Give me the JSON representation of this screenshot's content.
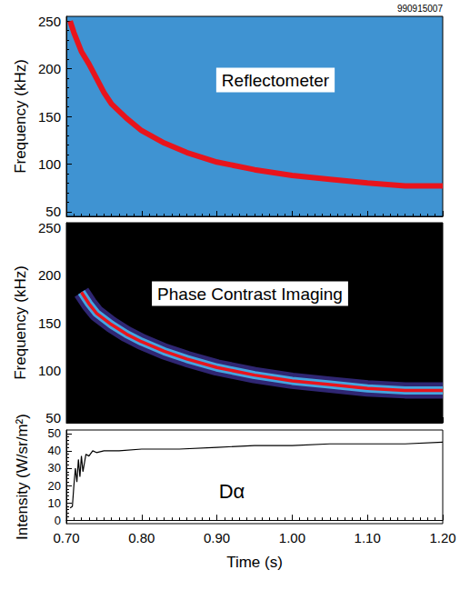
{
  "chart_data": [
    {
      "type": "line",
      "subtitle": "990915007",
      "annotation": "Reflectometer",
      "y_label": "Frequency (kHz)",
      "color": "#e8141c",
      "tick_labels": "y",
      "x": [
        0.705,
        0.71,
        0.72,
        0.73,
        0.74,
        0.75,
        0.76,
        0.78,
        0.8,
        0.83,
        0.86,
        0.9,
        0.95,
        1.0,
        1.05,
        1.1,
        1.15,
        1.2
      ],
      "values": [
        250,
        238,
        218,
        205,
        190,
        175,
        163,
        148,
        135,
        122,
        112,
        102,
        94,
        88,
        84,
        80,
        77,
        77
      ],
      "xlim": [
        0.7,
        1.2
      ],
      "xticks": [
        {
          "value": 0.7,
          "label": "0.70"
        },
        {
          "value": 0.8,
          "label": "0.80"
        },
        {
          "value": 0.9,
          "label": "0.90"
        },
        {
          "value": 1.0,
          "label": "1.00"
        },
        {
          "value": 1.1,
          "label": "1.10"
        },
        {
          "value": 1.2,
          "label": "1.20"
        }
      ],
      "ylim": [
        45,
        255
      ],
      "yticks": [
        50,
        100,
        150,
        200,
        250
      ]
    },
    {
      "type": "line",
      "annotation": "Phase Contrast Imaging",
      "y_label": "Frequency (kHz)",
      "color": "#e8141c",
      "tick_labels": "y",
      "x": [
        0.72,
        0.73,
        0.74,
        0.76,
        0.78,
        0.8,
        0.83,
        0.86,
        0.9,
        0.95,
        1.0,
        1.05,
        1.1,
        1.15,
        1.2
      ],
      "values": [
        182,
        170,
        160,
        148,
        138,
        130,
        120,
        112,
        103,
        95,
        89,
        85,
        81,
        79,
        79
      ],
      "xlim": [
        0.7,
        1.2
      ],
      "xticks": [
        {
          "value": 0.7,
          "label": "0.70"
        },
        {
          "value": 0.8,
          "label": "0.80"
        },
        {
          "value": 0.9,
          "label": "0.90"
        },
        {
          "value": 1.0,
          "label": "1.00"
        },
        {
          "value": 1.1,
          "label": "1.10"
        },
        {
          "value": 1.2,
          "label": "1.20"
        }
      ],
      "ylim": [
        45,
        255
      ],
      "yticks": [
        50,
        100,
        150,
        200,
        250
      ]
    },
    {
      "type": "line",
      "annotation": "Dα",
      "x_label": "Time (s)",
      "y_label": "Intensity (W/sr/m²)",
      "color": "#000000",
      "x": [
        0.705,
        0.708,
        0.71,
        0.712,
        0.714,
        0.716,
        0.718,
        0.72,
        0.722,
        0.724,
        0.726,
        0.73,
        0.735,
        0.74,
        0.75,
        0.77,
        0.8,
        0.85,
        0.9,
        0.95,
        1.0,
        1.05,
        1.1,
        1.15,
        1.2
      ],
      "values": [
        7,
        8,
        20,
        30,
        22,
        35,
        25,
        37,
        28,
        33,
        38,
        37,
        40,
        39,
        40,
        40,
        41,
        41,
        42,
        43,
        43,
        44,
        44,
        44,
        45
      ],
      "xlim": [
        0.7,
        1.2
      ],
      "xticks": [
        {
          "value": 0.7,
          "label": "0.70"
        },
        {
          "value": 0.8,
          "label": "0.80"
        },
        {
          "value": 0.9,
          "label": "0.90"
        },
        {
          "value": 1.0,
          "label": "1.00"
        },
        {
          "value": 1.1,
          "label": "1.10"
        },
        {
          "value": 1.2,
          "label": "1.20"
        }
      ],
      "ylim": [
        -2,
        52
      ],
      "yticks": [
        0,
        10,
        20,
        30,
        40,
        50
      ]
    }
  ]
}
